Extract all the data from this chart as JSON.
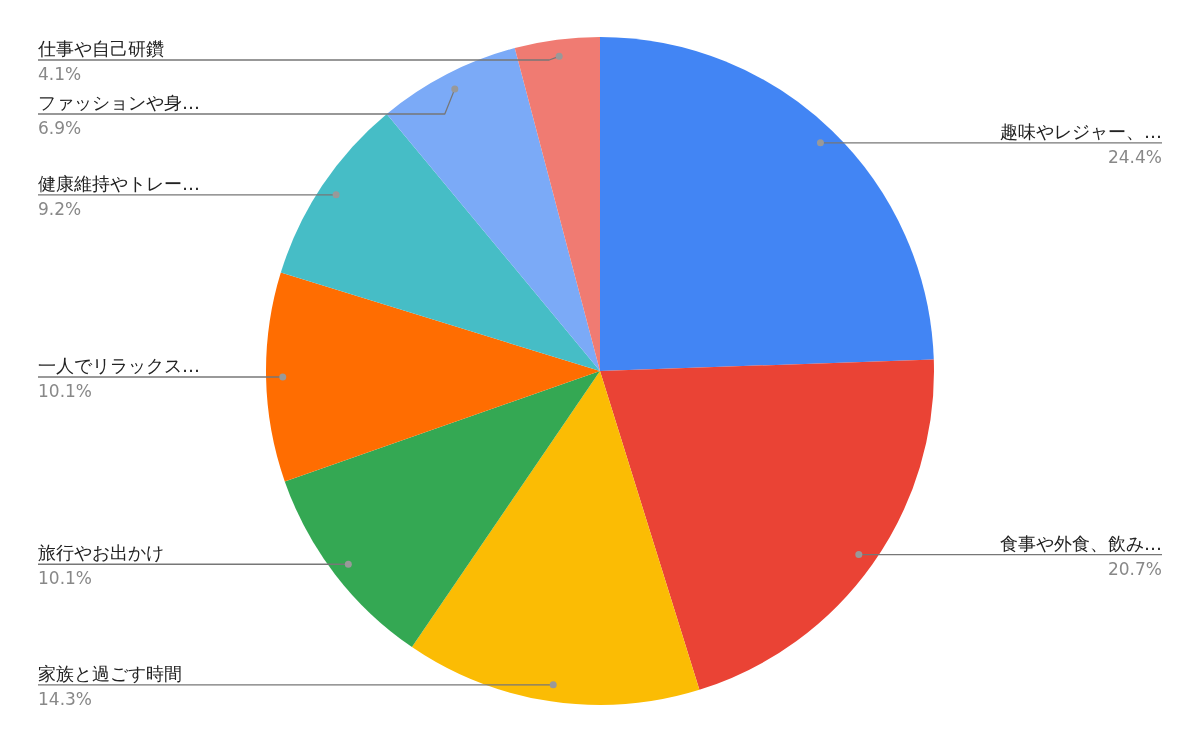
{
  "chart_data": {
    "type": "pie",
    "categories": [
      "趣味やレジャー、…",
      "食事や外食、飲み…",
      "家族と過ごす時間",
      "旅行やお出かけ",
      "一人でリラックス…",
      "健康維持やトレー…",
      "ファッションや身…",
      "仕事や自己研鑽"
    ],
    "values": [
      24.4,
      20.7,
      14.3,
      10.1,
      10.1,
      9.2,
      6.9,
      4.1
    ],
    "colors": [
      "#4285f4",
      "#ea4335",
      "#fbbc04",
      "#34a853",
      "#ff6d01",
      "#46bdc6",
      "#7baaf7",
      "#f07b72"
    ],
    "legend": false,
    "value_labels": [
      "24.4%",
      "20.7%",
      "14.3%",
      "10.1%",
      "10.1%",
      "9.2%",
      "6.9%",
      "4.1%"
    ]
  }
}
